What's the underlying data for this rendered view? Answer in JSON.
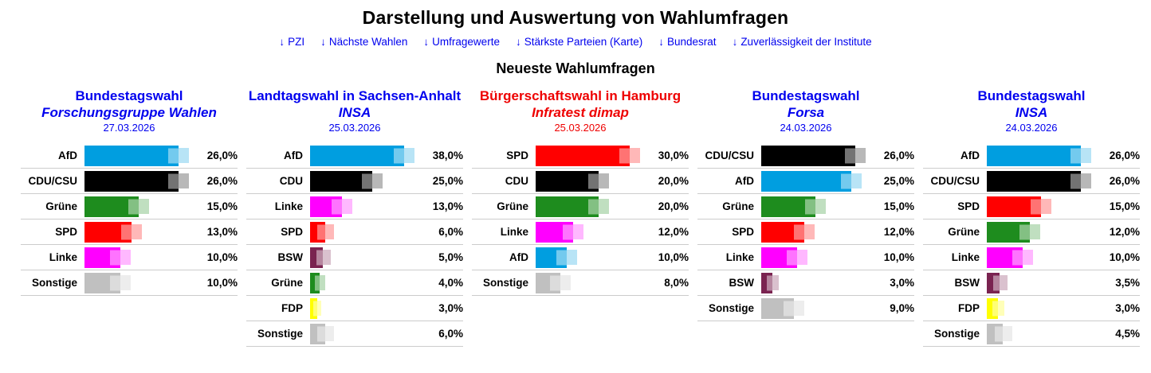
{
  "page": {
    "title": "Darstellung und Auswertung von Wahlumfragen",
    "subtitle": "Neueste Wahlumfragen",
    "nav": [
      {
        "arrow": "↓",
        "label": "PZI"
      },
      {
        "arrow": "↓",
        "label": "Nächste Wahlen"
      },
      {
        "arrow": "↓",
        "label": "Umfragewerte"
      },
      {
        "arrow": "↓",
        "label": "Stärkste Parteien (Karte)"
      },
      {
        "arrow": "↓",
        "label": "Bundesrat"
      },
      {
        "arrow": "↓",
        "label": "Zuverlässigkeit der Institute"
      }
    ]
  },
  "colors": {
    "link_blue": "#0000ee",
    "header_red": "#ee0000",
    "row_separator": "#cccccc",
    "parties": {
      "AfD": "#009ee0",
      "CDU/CSU": "#000000",
      "CDU": "#000000",
      "Grüne": "#1e8c1e",
      "SPD": "#ff0000",
      "Linke": "#ff00ff",
      "BSW": "#7a2350",
      "FDP": "#ffff00",
      "Sonstige": "#c0c0c0"
    }
  },
  "chart_data": [
    {
      "type": "bar",
      "title": "Bundestagswahl",
      "institute": "Forschungsgruppe Wahlen",
      "date": "27.03.2026",
      "accent": "blue",
      "categories": [
        "AfD",
        "CDU/CSU",
        "Grüne",
        "SPD",
        "Linke",
        "Sonstige"
      ],
      "values": [
        26.0,
        26.0,
        15.0,
        13.0,
        10.0,
        10.0
      ],
      "value_labels": [
        "26,0%",
        "26,0%",
        "15,0%",
        "13,0%",
        "10,0%",
        "10,0%"
      ]
    },
    {
      "type": "bar",
      "title": "Landtagswahl in Sachsen-Anhalt",
      "institute": "INSA",
      "date": "25.03.2026",
      "accent": "blue",
      "categories": [
        "AfD",
        "CDU",
        "Linke",
        "SPD",
        "BSW",
        "Grüne",
        "FDP",
        "Sonstige"
      ],
      "values": [
        38.0,
        25.0,
        13.0,
        6.0,
        5.0,
        4.0,
        3.0,
        6.0
      ],
      "value_labels": [
        "38,0%",
        "25,0%",
        "13,0%",
        "6,0%",
        "5,0%",
        "4,0%",
        "3,0%",
        "6,0%"
      ]
    },
    {
      "type": "bar",
      "title": "Bürgerschaftswahl in Hamburg",
      "institute": "Infratest dimap",
      "date": "25.03.2026",
      "accent": "red",
      "categories": [
        "SPD",
        "CDU",
        "Grüne",
        "Linke",
        "AfD",
        "Sonstige"
      ],
      "values": [
        30.0,
        20.0,
        20.0,
        12.0,
        10.0,
        8.0
      ],
      "value_labels": [
        "30,0%",
        "20,0%",
        "20,0%",
        "12,0%",
        "10,0%",
        "8,0%"
      ]
    },
    {
      "type": "bar",
      "title": "Bundestagswahl",
      "institute": "Forsa",
      "date": "24.03.2026",
      "accent": "blue",
      "categories": [
        "CDU/CSU",
        "AfD",
        "Grüne",
        "SPD",
        "Linke",
        "BSW",
        "Sonstige"
      ],
      "values": [
        26.0,
        25.0,
        15.0,
        12.0,
        10.0,
        3.0,
        9.0
      ],
      "value_labels": [
        "26,0%",
        "25,0%",
        "15,0%",
        "12,0%",
        "10,0%",
        "3,0%",
        "9,0%"
      ]
    },
    {
      "type": "bar",
      "title": "Bundestagswahl",
      "institute": "INSA",
      "date": "24.03.2026",
      "accent": "blue",
      "categories": [
        "AfD",
        "CDU/CSU",
        "SPD",
        "Grüne",
        "Linke",
        "BSW",
        "FDP",
        "Sonstige"
      ],
      "values": [
        26.0,
        26.0,
        15.0,
        12.0,
        10.0,
        3.5,
        3.0,
        4.5
      ],
      "value_labels": [
        "26,0%",
        "26,0%",
        "15,0%",
        "12,0%",
        "10,0%",
        "3,5%",
        "3,0%",
        "4,5%"
      ]
    }
  ]
}
